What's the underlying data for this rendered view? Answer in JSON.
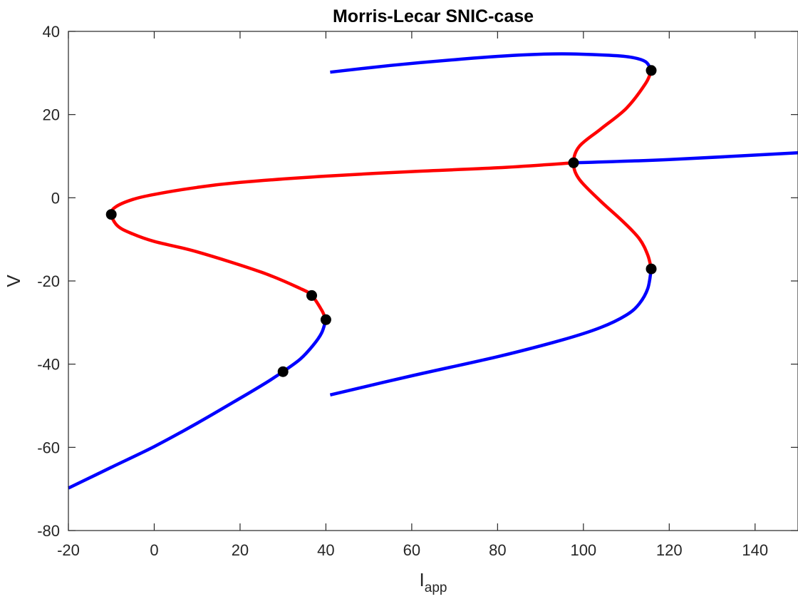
{
  "chart_data": {
    "type": "line",
    "title": "Morris-Lecar SNIC-case",
    "xlabel": "I",
    "xlabel_subscript": "app",
    "ylabel": "V",
    "xlim": [
      -20,
      150
    ],
    "ylim": [
      -80,
      40
    ],
    "xticks": [
      -20,
      0,
      20,
      40,
      60,
      80,
      100,
      120,
      140
    ],
    "yticks": [
      -80,
      -60,
      -40,
      -20,
      0,
      20,
      40
    ],
    "grid": false,
    "legend": "none",
    "colors": {
      "stable": "#0000ff",
      "unstable": "#ff0000",
      "points": "#000000",
      "axes": "#262626"
    },
    "series": [
      {
        "style": "stable",
        "points": [
          [
            -20,
            -69.8
          ],
          [
            -10,
            -64.8
          ],
          [
            0,
            -59.8
          ],
          [
            10,
            -54.2
          ],
          [
            20,
            -48.2
          ],
          [
            26,
            -44.5
          ],
          [
            30,
            -41.8
          ],
          [
            34,
            -38.8
          ],
          [
            37,
            -35.5
          ],
          [
            39,
            -32.5
          ],
          [
            40,
            -29.3
          ]
        ]
      },
      {
        "style": "unstable",
        "points": [
          [
            40,
            -29.3
          ],
          [
            39,
            -27.0
          ],
          [
            36.7,
            -23.5
          ],
          [
            34,
            -21.8
          ],
          [
            25,
            -17.9
          ],
          [
            10,
            -13.0
          ],
          [
            0,
            -10.5
          ],
          [
            -5,
            -8.7
          ],
          [
            -8.5,
            -6.8
          ],
          [
            -10,
            -4.0
          ],
          [
            -9,
            -2.2
          ],
          [
            -5,
            -0.4
          ],
          [
            0,
            0.8
          ],
          [
            10,
            2.5
          ],
          [
            20,
            3.7
          ],
          [
            40,
            5.2
          ],
          [
            60,
            6.3
          ],
          [
            80,
            7.2
          ],
          [
            97.7,
            8.4
          ]
        ]
      },
      {
        "style": "stable",
        "points": [
          [
            97.7,
            8.4
          ],
          [
            120,
            9.2
          ],
          [
            150,
            10.8
          ]
        ]
      },
      {
        "style": "unstable",
        "points": [
          [
            115.8,
            30.6
          ],
          [
            114.5,
            27.5
          ],
          [
            110,
            21.5
          ],
          [
            104,
            16.5
          ],
          [
            99,
            12.3
          ],
          [
            97.7,
            8.4
          ],
          [
            99,
            4.5
          ],
          [
            104,
            -0.8
          ],
          [
            109,
            -5.5
          ],
          [
            113,
            -9.8
          ],
          [
            115,
            -13.8
          ],
          [
            115.8,
            -17.1
          ]
        ]
      },
      {
        "style": "stable",
        "points": [
          [
            115.8,
            -17.1
          ],
          [
            115,
            -21.8
          ],
          [
            113,
            -25.5
          ],
          [
            110,
            -28.2
          ],
          [
            104,
            -31.2
          ],
          [
            95,
            -34.2
          ],
          [
            80,
            -38.2
          ],
          [
            60,
            -42.8
          ],
          [
            41,
            -47.4
          ]
        ]
      },
      {
        "style": "stable",
        "points": [
          [
            41,
            30.2
          ],
          [
            55,
            31.8
          ],
          [
            70,
            33.2
          ],
          [
            85,
            34.3
          ],
          [
            95,
            34.6
          ],
          [
            105,
            34.3
          ],
          [
            111,
            33.8
          ],
          [
            114.5,
            32.7
          ],
          [
            115.8,
            30.6
          ]
        ]
      }
    ],
    "special_points": [
      [
        -10,
        -4.0
      ],
      [
        36.7,
        -23.5
      ],
      [
        40,
        -29.3
      ],
      [
        30,
        -41.8
      ],
      [
        97.7,
        8.4
      ],
      [
        115.8,
        30.6
      ],
      [
        115.8,
        -17.1
      ]
    ]
  }
}
